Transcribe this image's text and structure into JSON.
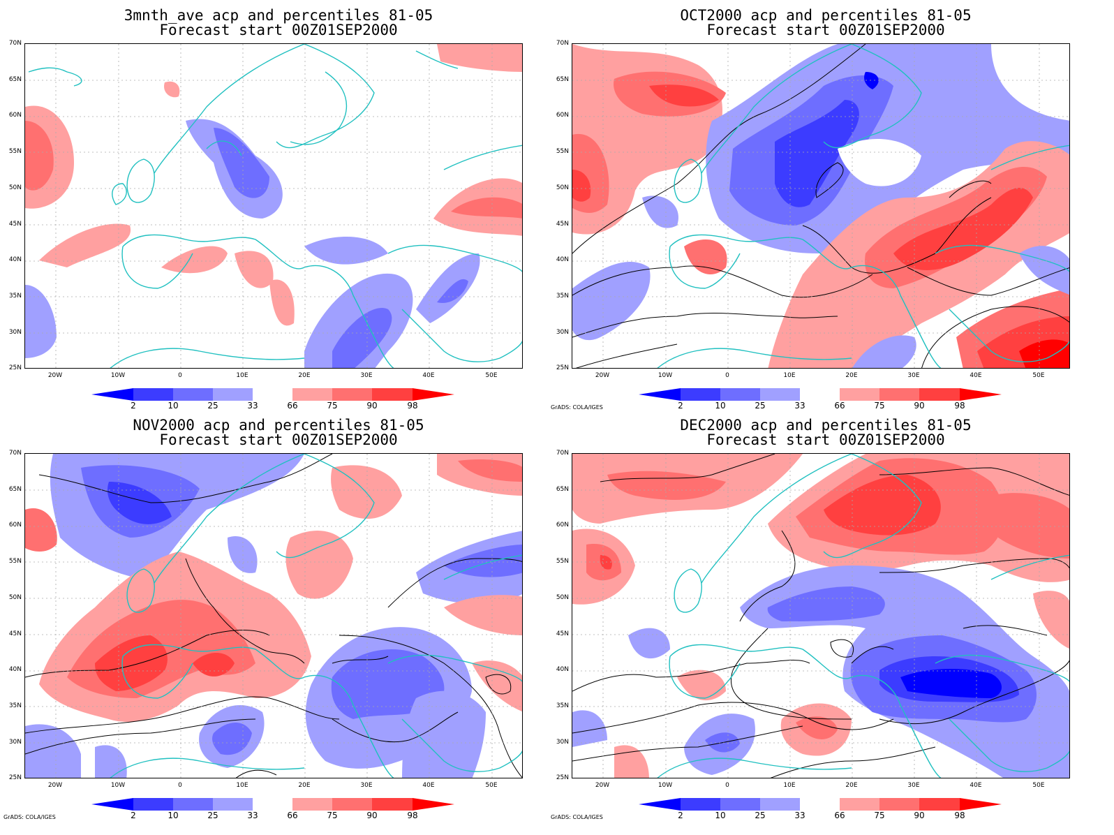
{
  "panels": [
    {
      "title1": "3mnth_ave acp and percentiles 81-05",
      "title2": "Forecast start 00Z01SEP2000",
      "credit": ""
    },
    {
      "title1": "OCT2000 acp and percentiles 81-05",
      "title2": "Forecast start 00Z01SEP2000",
      "credit": "GrADS: COLA/IGES"
    },
    {
      "title1": "NOV2000 acp and percentiles 81-05",
      "title2": "Forecast start 00Z01SEP2000",
      "credit": "GrADS: COLA/IGES"
    },
    {
      "title1": "DEC2000 acp and percentiles 81-05",
      "title2": "Forecast start 00Z01SEP2000",
      "credit": "GrADS: COLA/IGES"
    }
  ],
  "lat_labels": [
    "70N",
    "65N",
    "60N",
    "55N",
    "50N",
    "45N",
    "40N",
    "35N",
    "30N",
    "25N"
  ],
  "lon_labels": [
    "20W",
    "10W",
    "0",
    "10E",
    "20E",
    "30E",
    "40E",
    "50E"
  ],
  "colorbar": {
    "labels": [
      "2",
      "10",
      "25",
      "33",
      "66",
      "75",
      "90",
      "98"
    ],
    "colors": [
      "#0000ff",
      "#3c3cff",
      "#6e6eff",
      "#a0a0ff",
      "#ffffff",
      "#ffa0a0",
      "#ff7070",
      "#ff4040",
      "#ff0000"
    ]
  }
}
